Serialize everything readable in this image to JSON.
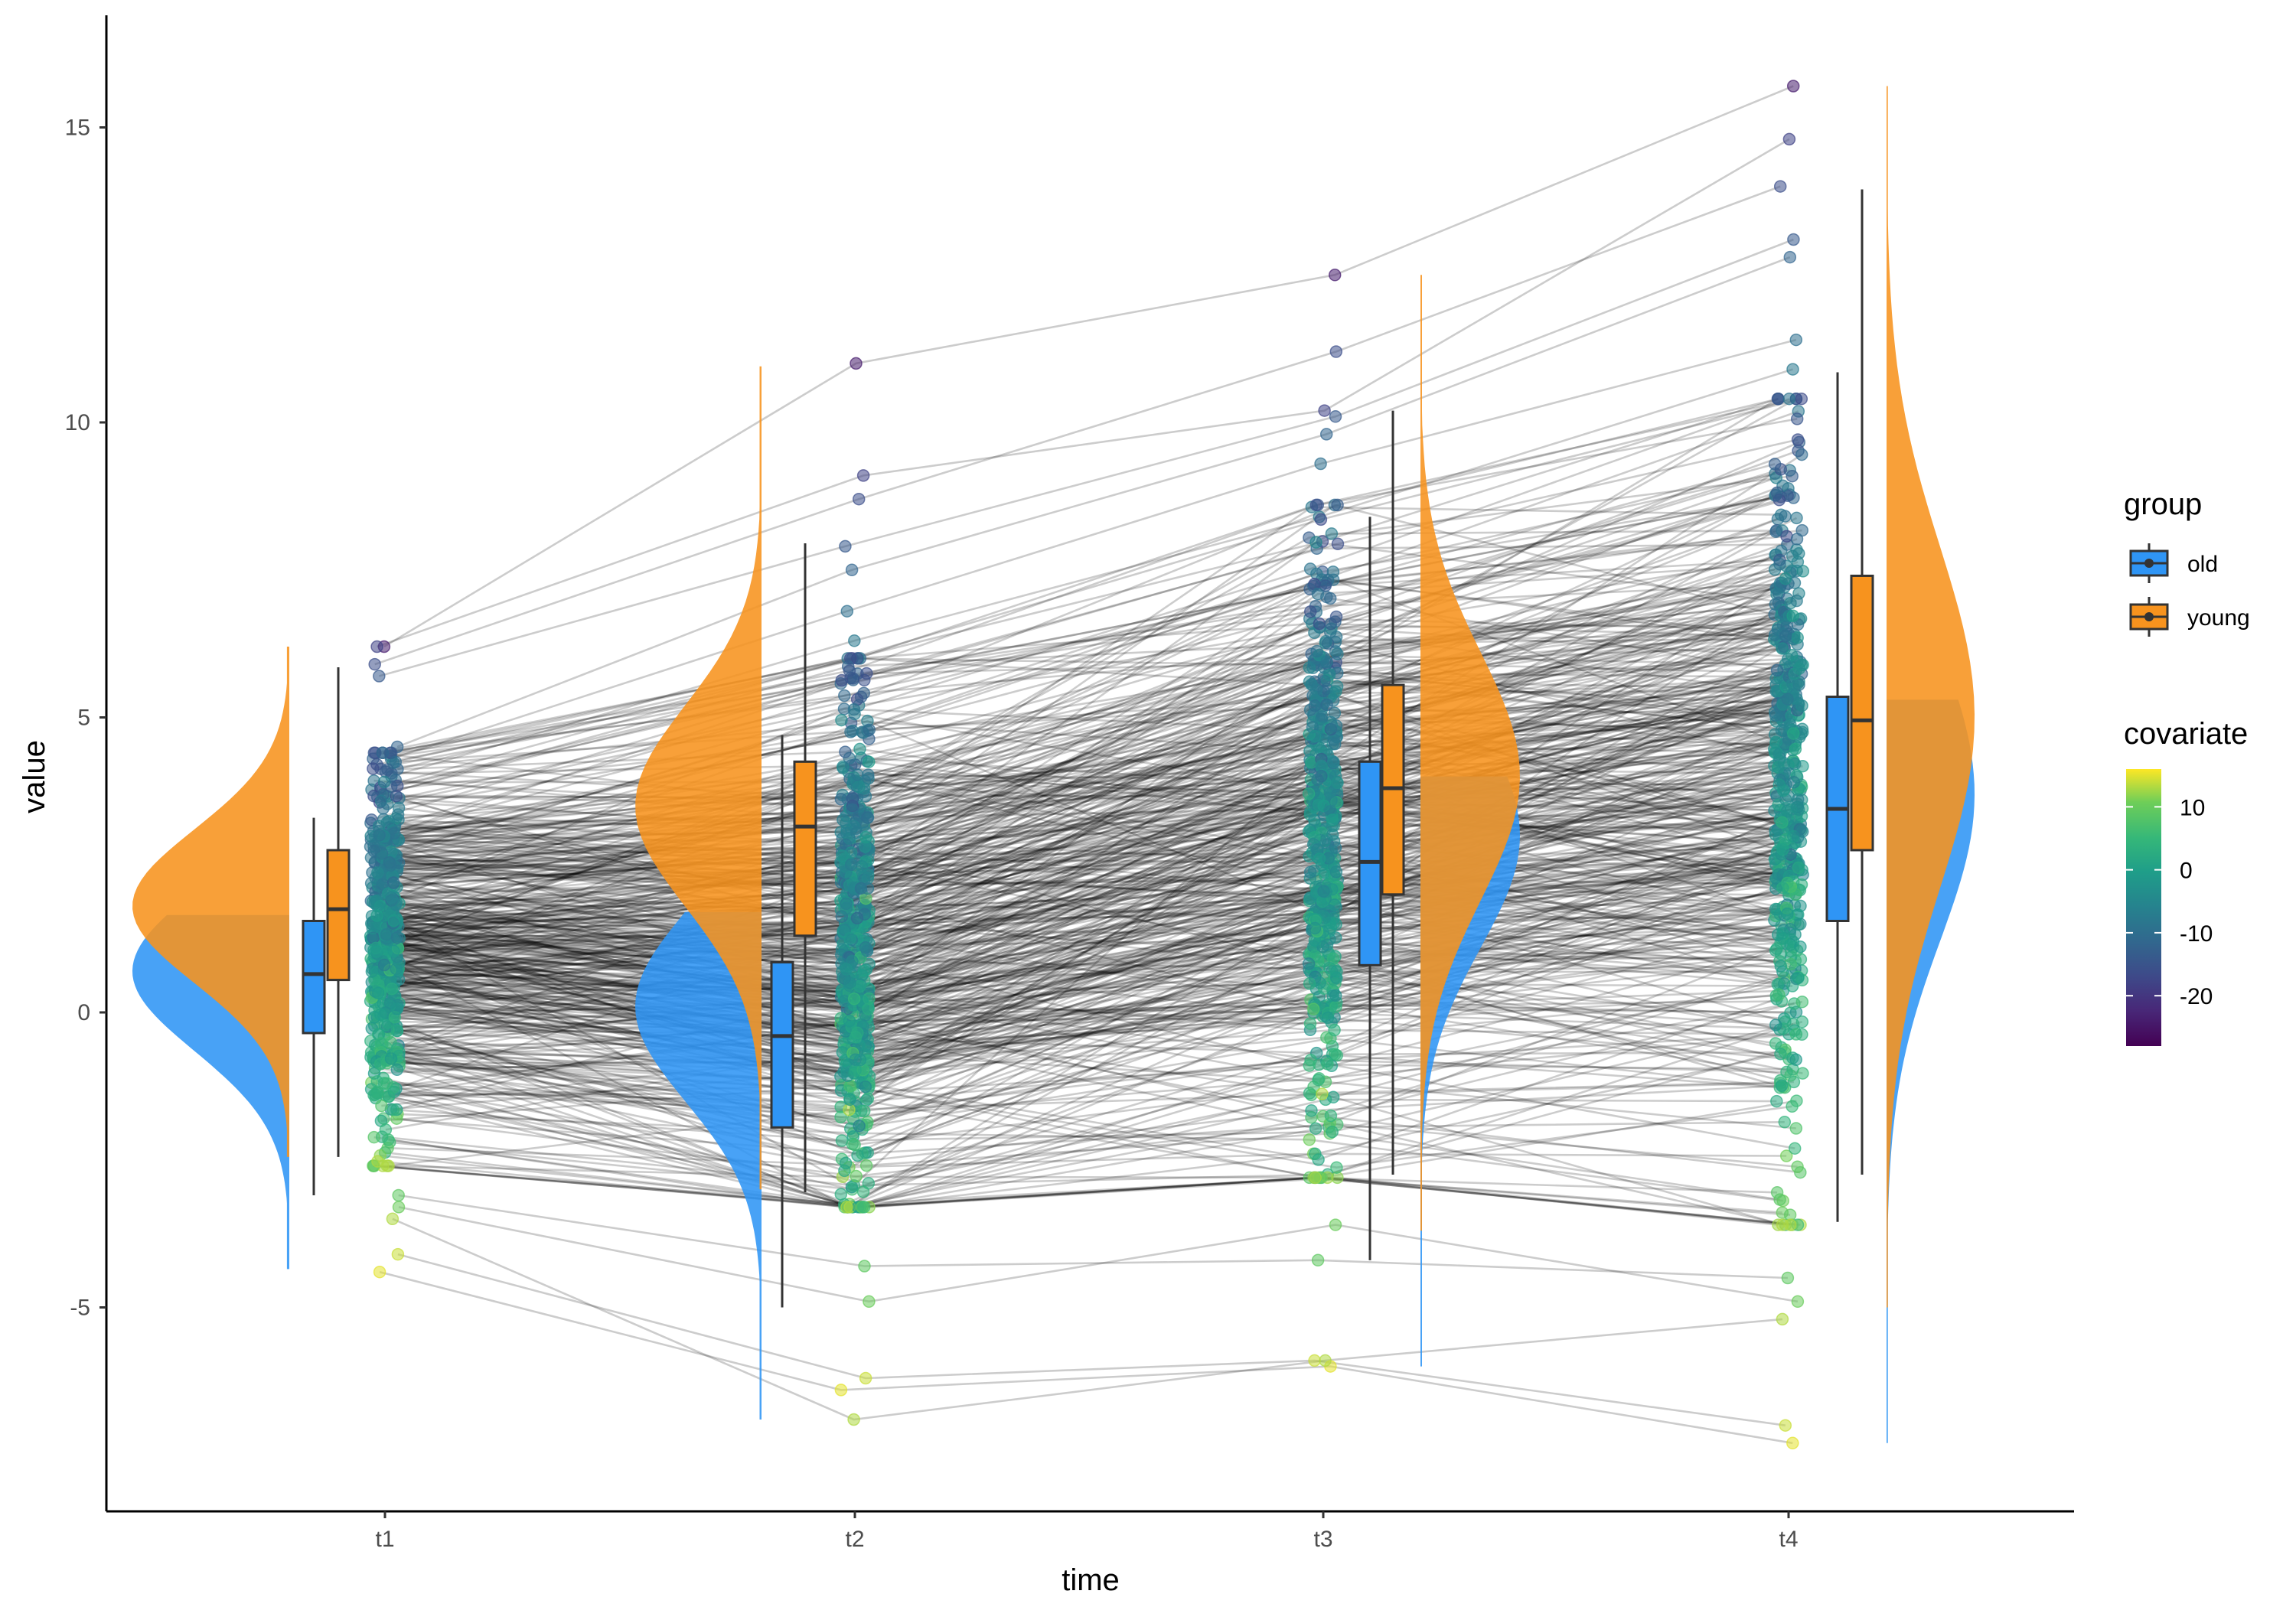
{
  "chart_data": {
    "type": "raincloud",
    "xlabel": "time",
    "ylabel": "value",
    "categories": [
      "t1",
      "t2",
      "t3",
      "t4"
    ],
    "ylim": [
      -8.5,
      16.8
    ],
    "yticks": [
      -5,
      0,
      5,
      10,
      15
    ],
    "ytick_labels": [
      "-5",
      "0",
      "5",
      "10",
      "15"
    ],
    "grid": false,
    "legend_position": "right",
    "group_legend": {
      "title": "group",
      "entries": [
        {
          "name": "old",
          "color": "#2f95f5"
        },
        {
          "name": "young",
          "color": "#f7931e"
        }
      ]
    },
    "covariate_legend": {
      "title": "covariate",
      "ticks": [
        10,
        0,
        -10,
        -20
      ],
      "tick_labels": [
        "10",
        "0",
        "-10",
        "-20"
      ],
      "range": [
        -28,
        16
      ],
      "palette": "viridis"
    },
    "boxplots": [
      {
        "time": "t1",
        "group": "old",
        "min": -3.1,
        "q1": -0.35,
        "median": 0.65,
        "q3": 1.55,
        "max": 3.3
      },
      {
        "time": "t1",
        "group": "young",
        "min": -2.45,
        "q1": 0.55,
        "median": 1.75,
        "q3": 2.75,
        "max": 5.85
      },
      {
        "time": "t2",
        "group": "old",
        "min": -5.0,
        "q1": -1.95,
        "median": -0.4,
        "q3": 0.85,
        "max": 4.7
      },
      {
        "time": "t2",
        "group": "young",
        "min": -3.05,
        "q1": 1.3,
        "median": 3.15,
        "q3": 4.25,
        "max": 7.95
      },
      {
        "time": "t3",
        "group": "old",
        "min": -4.2,
        "q1": 0.8,
        "median": 2.55,
        "q3": 4.25,
        "max": 8.4
      },
      {
        "time": "t3",
        "group": "young",
        "min": -2.75,
        "q1": 2.0,
        "median": 3.8,
        "q3": 5.55,
        "max": 10.2
      },
      {
        "time": "t4",
        "group": "old",
        "min": -3.55,
        "q1": 1.55,
        "median": 3.45,
        "q3": 5.35,
        "max": 10.85
      },
      {
        "time": "t4",
        "group": "young",
        "min": -2.75,
        "q1": 2.75,
        "median": 4.95,
        "q3": 7.4,
        "max": 13.95
      }
    ],
    "densities": [
      {
        "time": "t1",
        "group": "old",
        "side": "left",
        "y_min": -4.35,
        "y_max": 1.65,
        "mode": 0.7,
        "sd": 1.35
      },
      {
        "time": "t1",
        "group": "young",
        "side": "left",
        "y_min": -2.45,
        "y_max": 6.2,
        "mode": 1.8,
        "sd": 1.3
      },
      {
        "time": "t2",
        "group": "old",
        "side": "left",
        "y_min": -6.9,
        "y_max": 1.7,
        "mode": 0.1,
        "sd": 1.6
      },
      {
        "time": "t2",
        "group": "young",
        "side": "left",
        "y_min": -3.0,
        "y_max": 10.95,
        "mode": 3.5,
        "sd": 1.7
      },
      {
        "time": "t3",
        "group": "old",
        "side": "right",
        "y_min": -6.0,
        "y_max": 4.0,
        "mode": 3.0,
        "sd": 1.9
      },
      {
        "time": "t3",
        "group": "young",
        "side": "right",
        "y_min": -3.7,
        "y_max": 12.5,
        "mode": 4.0,
        "sd": 2.1
      },
      {
        "time": "t4",
        "group": "old",
        "side": "right",
        "y_min": -7.3,
        "y_max": 5.3,
        "mode": 3.7,
        "sd": 2.5
      },
      {
        "time": "t4",
        "group": "young",
        "side": "right",
        "y_min": -5.0,
        "y_max": 15.7,
        "mode": 5.0,
        "sd": 2.9
      }
    ],
    "subjects": [
      [
        6.2,
        11.0,
        12.5,
        15.7
      ],
      [
        6.2,
        9.1,
        10.2,
        14.8
      ],
      [
        5.9,
        8.7,
        11.2,
        14.0
      ],
      [
        5.7,
        7.9,
        10.1,
        13.1
      ],
      [
        4.5,
        7.5,
        9.8,
        12.8
      ],
      [
        4.3,
        6.8,
        9.3,
        11.4
      ],
      [
        4.0,
        6.3,
        8.4,
        10.9
      ],
      [
        -4.1,
        -6.2,
        -5.9,
        -7.0
      ],
      [
        -4.4,
        -6.4,
        -6.0,
        -7.3
      ],
      [
        -3.5,
        -6.9,
        -5.9,
        -5.2
      ],
      [
        -3.3,
        -4.9,
        -3.6,
        -4.9
      ],
      [
        -3.1,
        -4.3,
        -4.2,
        -4.5
      ],
      [
        2.9,
        3.1,
        4.6,
        6.3
      ],
      [
        1.5,
        1.0,
        3.1,
        4.4
      ],
      [
        0.3,
        -0.9,
        1.7,
        2.6
      ],
      [
        -1.2,
        -1.9,
        0.0,
        0.9
      ],
      [
        -2.2,
        -3.0,
        -1.4,
        -1.2
      ]
    ],
    "subject_covariates": [
      -24,
      -18,
      -16,
      -14,
      -12,
      -10,
      -8,
      14,
      15,
      13,
      10,
      9,
      -5,
      -2,
      0,
      3,
      6
    ],
    "subject_count_shown": 500
  }
}
